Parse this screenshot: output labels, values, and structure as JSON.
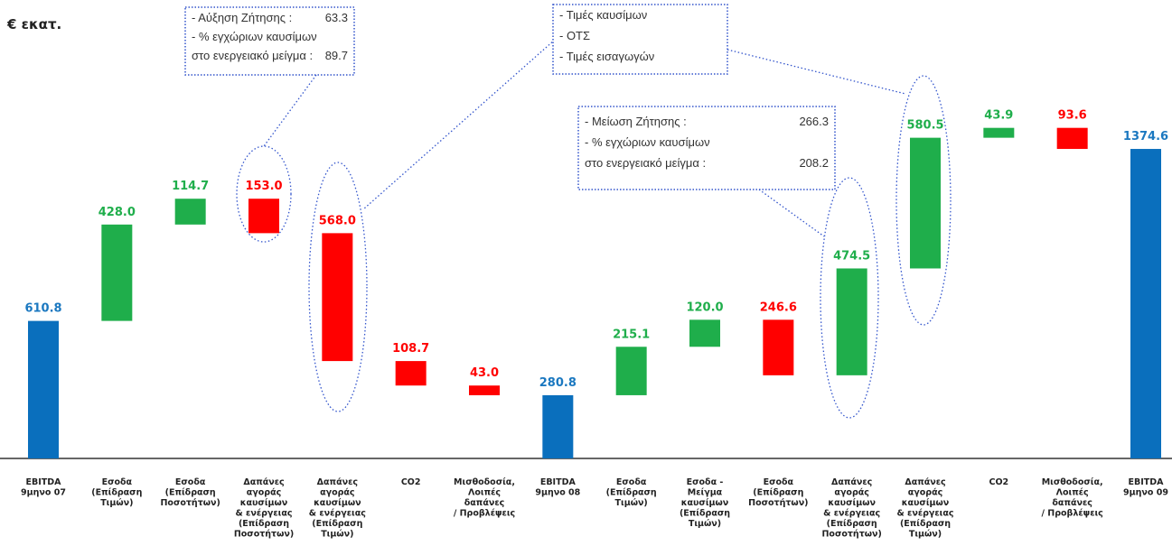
{
  "chart_data": {
    "type": "waterfall",
    "unit_label": "€ εκατ.",
    "categories": [
      "EBITDA\n9μηνο 07",
      "Εσοδα\n(Επίδραση\nΤιμών)",
      "Εσοδα\n(Επίδραση\nΠοσοτήτων)",
      "Δαπάνες\nαγοράς\nκαυσίμων\n& ενέργειας\n(Επίδραση\nΠοσοτήτων)",
      "Δαπάνες\nαγοράς\nκαυσίμων\n& ενέργειας\n(Επίδραση\nΤιμών)",
      "CO2",
      "Μισθοδοσία,\nΛοιπές\nδαπάνες\n/ Προβλέψεις",
      "EBITDA\n9μηνο 08",
      "Εσοδα\n(Επίδραση\nΤιμών)",
      "Εσοδα -\nΜείγμα\nκαυσίμων\n(Επίδραση\nΤιμών)",
      "Εσοδα\n(Επίδραση\nΠοσοτήτων)",
      "Δαπάνες\nαγοράς\nκαυσίμων\n& ενέργειας\n(Επίδραση\nΠοσοτήτων)",
      "Δαπάνες\nαγοράς\nκαυσίμων\n& ενέργειας\n(Επίδραση\nΤιμών)",
      "CO2",
      "Μισθοδοσία,\nΛοιπές\nδαπάνες\n/ Προβλέψεις",
      "EBITDA\n9μηνο 09"
    ],
    "values": [
      610.8,
      428.0,
      114.7,
      -153.0,
      -568.0,
      -108.7,
      -43.0,
      280.8,
      215.1,
      120.0,
      -246.6,
      474.5,
      580.5,
      43.9,
      -93.6,
      1374.6
    ],
    "value_labels": [
      "610.8",
      "428.0",
      "114.7",
      "153.0",
      "568.0",
      "108.7",
      "43.0",
      "280.8",
      "215.1",
      "120.0",
      "246.6",
      "474.5",
      "580.5",
      "43.9",
      "93.6",
      "1374.6"
    ],
    "colors": [
      "#0a6fbd",
      "#1fae4b",
      "#1fae4b",
      "#ff0000",
      "#ff0000",
      "#ff0000",
      "#ff0000",
      "#0a6fbd",
      "#1fae4b",
      "#1fae4b",
      "#ff0000",
      "#1fae4b",
      "#1fae4b",
      "#1fae4b",
      "#ff0000",
      "#0a6fbd"
    ],
    "label_colors": [
      "#1b78c0",
      "#1fae4b",
      "#1fae4b",
      "#ff0000",
      "#ff0000",
      "#ff0000",
      "#ff0000",
      "#1b78c0",
      "#1fae4b",
      "#1fae4b",
      "#ff0000",
      "#1fae4b",
      "#1fae4b",
      "#1fae4b",
      "#ff0000",
      "#1b78c0"
    ],
    "ylim": [
      0,
      1500
    ],
    "annotations": [
      {
        "lines": [
          [
            "- Αύξηση Ζήτησης      :",
            "63.3"
          ],
          [
            "- % εγχώριων καυσίμων",
            ""
          ],
          [
            "   στο ενεργειακό μείγμα :",
            "89.7"
          ]
        ]
      },
      {
        "lines": [
          [
            "- Τιμές καυσίμων",
            ""
          ],
          [
            "- ΟΤΣ",
            ""
          ],
          [
            "- Τιμές εισαγωγών",
            ""
          ]
        ]
      },
      {
        "lines": [
          [
            "- Μείωση Ζήτησης :",
            "266.3"
          ],
          [
            "- % εγχώριων καυσίμων",
            ""
          ],
          [
            "   στο ενεργειακό μείγμα :",
            "208.2"
          ]
        ]
      }
    ]
  }
}
